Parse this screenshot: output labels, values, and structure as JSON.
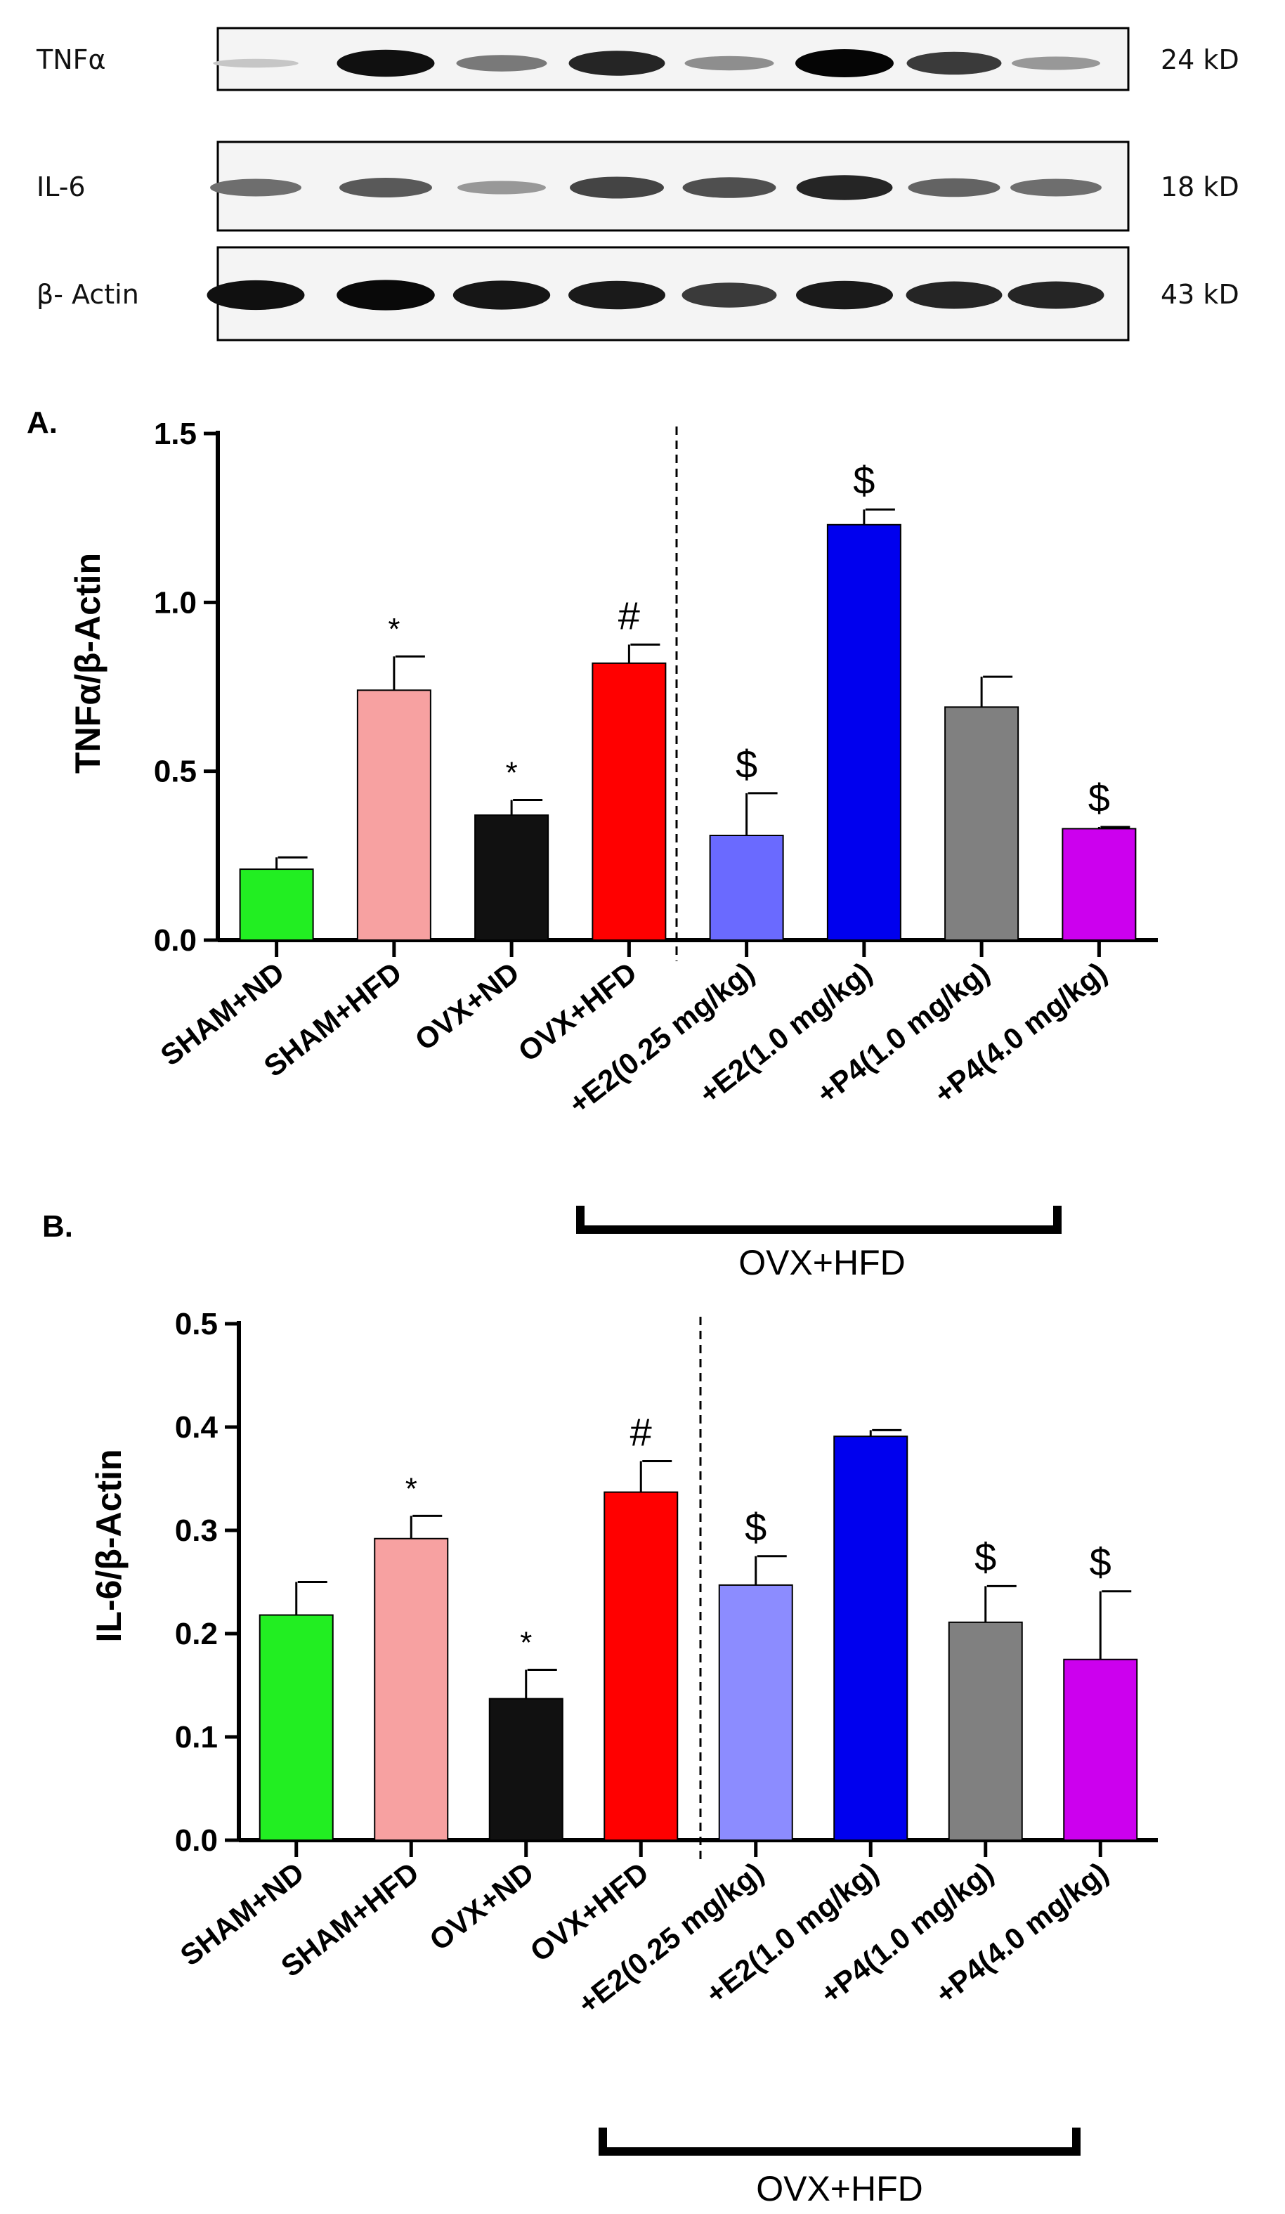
{
  "blot": {
    "rows": [
      {
        "protein": "TNFα",
        "size": "24 kD",
        "intensities": [
          0.08,
          0.95,
          0.45,
          0.85,
          0.35,
          1.0,
          0.75,
          0.3
        ]
      },
      {
        "protein": "IL-6",
        "size": "18 kD",
        "intensities": [
          0.5,
          0.6,
          0.3,
          0.7,
          0.65,
          0.85,
          0.55,
          0.5
        ]
      },
      {
        "protein": "β- Actin",
        "size": "43 kD",
        "intensities": [
          0.95,
          0.98,
          0.92,
          0.9,
          0.75,
          0.9,
          0.85,
          0.85
        ]
      }
    ]
  },
  "chart_data": [
    {
      "type": "bar",
      "panel": "A.",
      "ylabel": "TNFα/β-Actin",
      "ylim": [
        0,
        1.5
      ],
      "yticks": [
        "0.0",
        "0.5",
        "1.0",
        "1.5"
      ],
      "categories": [
        "SHAM+ND",
        "SHAM+HFD",
        "OVX+ND",
        "OVX+HFD",
        "+E2(0.25 mg/kg)",
        "+E2(1.0 mg/kg)",
        "+P4(1.0 mg/kg)",
        "+P4(4.0 mg/kg)"
      ],
      "values": [
        0.21,
        0.74,
        0.37,
        0.82,
        0.31,
        1.23,
        0.69,
        0.33
      ],
      "errors": [
        0.035,
        0.1,
        0.045,
        0.055,
        0.125,
        0.045,
        0.09,
        0.005
      ],
      "annotations": [
        "",
        "*",
        "*",
        "#",
        "$",
        "$",
        "",
        "$"
      ],
      "colors": [
        "#22ee22",
        "#f7a1a1",
        "#111111",
        "#ff0000",
        "#6a6aff",
        "#0000ee",
        "#808080",
        "#cc00ee"
      ],
      "group_bracket_label": "OVX+HFD"
    },
    {
      "type": "bar",
      "panel": "B.",
      "ylabel": "IL-6/β-Actin",
      "ylim": [
        0,
        0.5
      ],
      "yticks": [
        "0.0",
        "0.1",
        "0.2",
        "0.3",
        "0.4",
        "0.5"
      ],
      "categories": [
        "SHAM+ND",
        "SHAM+HFD",
        "OVX+ND",
        "OVX+HFD",
        "+E2(0.25 mg/kg)",
        "+E2(1.0 mg/kg)",
        "+P4(1.0 mg/kg)",
        "+P4(4.0 mg/kg)"
      ],
      "values": [
        0.218,
        0.292,
        0.137,
        0.337,
        0.247,
        0.391,
        0.211,
        0.175
      ],
      "errors": [
        0.032,
        0.022,
        0.028,
        0.03,
        0.028,
        0.006,
        0.035,
        0.066
      ],
      "annotations": [
        "",
        "*",
        "*",
        "#",
        "$",
        "",
        "$",
        "$"
      ],
      "colors": [
        "#22ee22",
        "#f7a1a1",
        "#111111",
        "#ff0000",
        "#8c8cff",
        "#0000ee",
        "#808080",
        "#cc00ee"
      ],
      "group_bracket_label": "OVX+HFD"
    }
  ]
}
